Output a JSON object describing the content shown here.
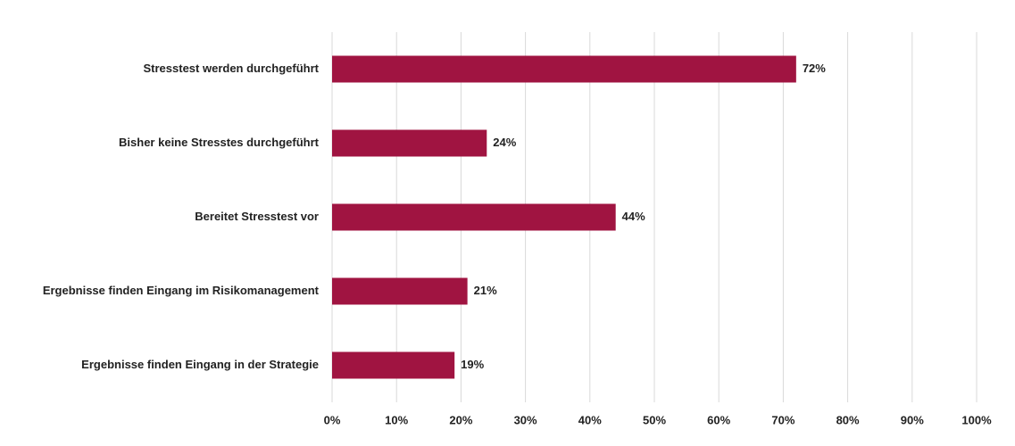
{
  "chart_data": {
    "type": "bar",
    "orientation": "horizontal",
    "categories": [
      "Stresstest werden durchgeführt",
      "Bisher keine Stresstes durchgeführt",
      "Bereitet Stresstest vor",
      "Ergebnisse finden Eingang im Risikomanagement",
      "Ergebnisse finden Eingang in der Strategie"
    ],
    "values": [
      72,
      24,
      44,
      21,
      19
    ],
    "value_labels": [
      "72%",
      "24%",
      "44%",
      "21%",
      "19%"
    ],
    "color": "#a01441",
    "xlim": [
      0,
      100
    ],
    "xticks": [
      {
        "value": 0,
        "label": "0%"
      },
      {
        "value": 10,
        "label": "10%"
      },
      {
        "value": 20,
        "label": "20%"
      },
      {
        "value": 30,
        "label": "30%"
      },
      {
        "value": 40,
        "label": "40%"
      },
      {
        "value": 50,
        "label": "50%"
      },
      {
        "value": 60,
        "label": "60%"
      },
      {
        "value": 70,
        "label": "70%"
      },
      {
        "value": 80,
        "label": "80%"
      },
      {
        "value": 90,
        "label": "90%"
      },
      {
        "value": 100,
        "label": "100%"
      }
    ],
    "grid": true
  }
}
